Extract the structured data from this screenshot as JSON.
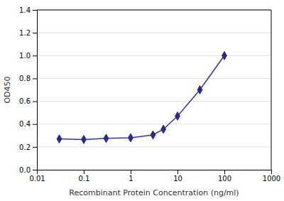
{
  "chart_data": {
    "type": "line",
    "x": [
      0.03,
      0.1,
      0.3,
      1.0,
      3.0,
      5.0,
      10.0,
      30.0,
      100.0
    ],
    "values": [
      0.27,
      0.265,
      0.275,
      0.28,
      0.305,
      0.355,
      0.47,
      0.7,
      1.0
    ],
    "color": "#3333aa",
    "marker": "diamond",
    "xlabel": "Recombinant Protein Concentration (ng/ml)",
    "ylabel": "OD450",
    "log": "x",
    "xlim": [
      0.01,
      1000
    ],
    "ylim": [
      0.0,
      1.4
    ],
    "xticks": [
      0.01,
      0.1,
      1,
      10,
      100,
      1000
    ],
    "yticks": [
      {
        "value": 0.0,
        "label": "0.0"
      },
      0.2,
      0.4,
      0.6,
      0.8,
      {
        "value": 1.0,
        "label": "1.0"
      },
      1.2,
      1.4
    ],
    "grid": true
  }
}
